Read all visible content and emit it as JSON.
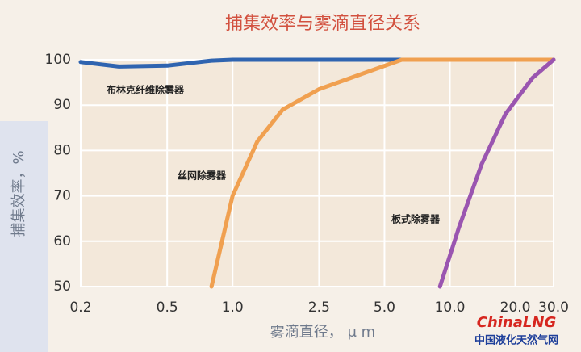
{
  "chart_data": {
    "type": "line",
    "title": "捕集效率与雾滴直径关系",
    "y_label": "捕集效率，%",
    "x_label": "雾滴直径， μ m",
    "xscale": "log",
    "xlim": [
      0.2,
      30
    ],
    "ylim": [
      50,
      100
    ],
    "xticks": [
      0.2,
      0.5,
      {
        "value": 1,
        "label": "1.0"
      },
      2.5,
      {
        "value": 5,
        "label": "5.0"
      },
      {
        "value": 10,
        "label": "10.0"
      },
      {
        "value": 20,
        "label": "20.0"
      },
      {
        "value": 30,
        "label": "30.0"
      }
    ],
    "yticks": [
      50,
      60,
      70,
      80,
      90,
      100
    ],
    "grid": true,
    "series": [
      {
        "name": "布林克纤维除雾器",
        "color": "#2f64b0",
        "x": [
          0.2,
          0.3,
          0.5,
          0.8,
          1,
          2,
          5,
          10,
          30
        ],
        "values": [
          99.5,
          98.5,
          98.7,
          99.8,
          100,
          100,
          100,
          100,
          100
        ]
      },
      {
        "name": "丝网除雾器",
        "color": "#f0a050",
        "x": [
          0.8,
          1,
          1.3,
          1.7,
          2.5,
          4,
          6,
          30
        ],
        "values": [
          50,
          70,
          82,
          89,
          93.5,
          97,
          100,
          100
        ]
      },
      {
        "name": "板式除雾器",
        "color": "#9a55b0",
        "x": [
          9,
          11,
          14,
          18,
          24,
          30
        ],
        "values": [
          50,
          63,
          77,
          88,
          96,
          100
        ]
      }
    ],
    "watermark": {
      "brand": "ChinaLNG",
      "site": "中国液化天然气网"
    }
  }
}
